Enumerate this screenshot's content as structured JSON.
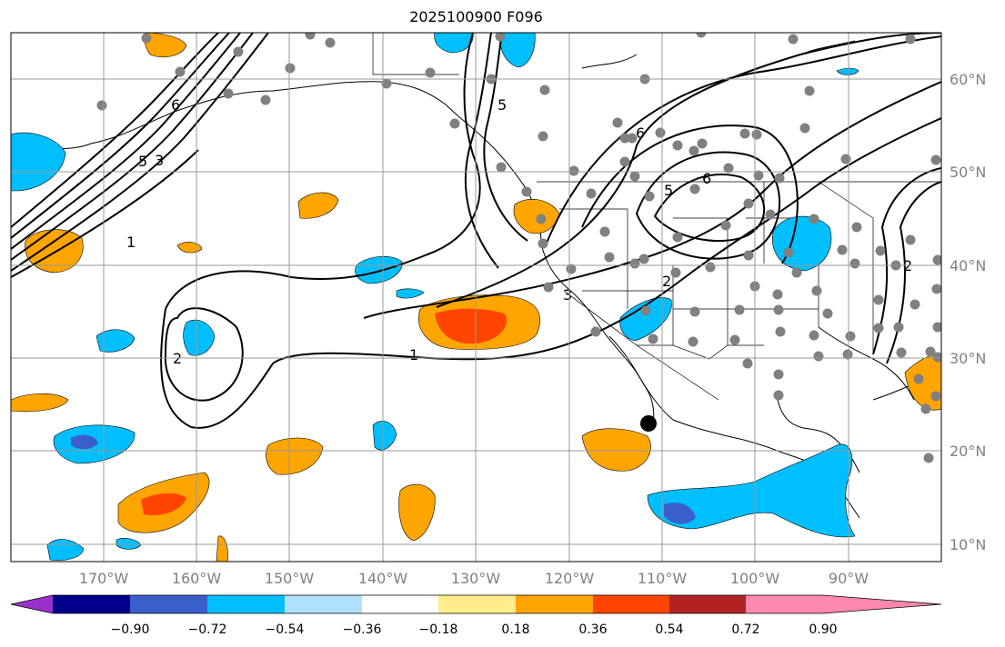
{
  "title": "2025100900 F096",
  "map": {
    "longitude_ticks": [
      "170°W",
      "160°W",
      "150°W",
      "140°W",
      "130°W",
      "120°W",
      "110°W",
      "100°W",
      "90°W"
    ],
    "latitude_ticks": [
      "60°N",
      "50°N",
      "40°N",
      "30°N",
      "20°N",
      "10°N"
    ],
    "contour_labels": [
      "6",
      "5",
      "3",
      "1",
      "5",
      "6",
      "5",
      "6",
      "2",
      "3",
      "1",
      "2",
      "2"
    ],
    "station_marker_color": "#808080",
    "contour_color": "#000000"
  },
  "colorbar": {
    "tick_labels": [
      "−0.90",
      "−0.72",
      "−0.54",
      "−0.36",
      "−0.18",
      "0.18",
      "0.36",
      "0.54",
      "0.72",
      "0.90"
    ],
    "colors": [
      "#9932cc",
      "#00008b",
      "#3a5fcd",
      "#00bfff",
      "#b0e2ff",
      "#ffffff",
      "#ffec8b",
      "#ffa500",
      "#ff4500",
      "#b22222",
      "#ff88b0"
    ]
  }
}
